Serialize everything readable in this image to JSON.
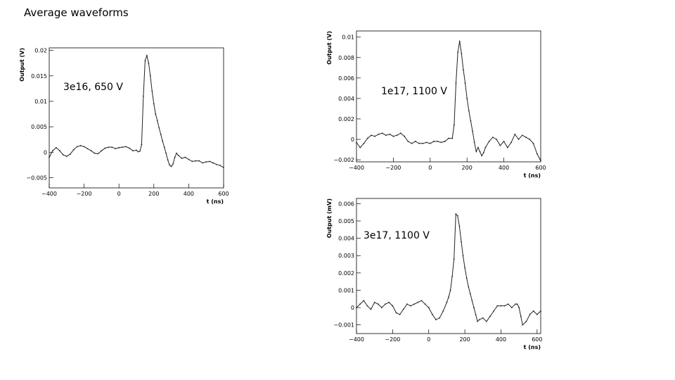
{
  "slide_title": "Average waveforms",
  "chart_data": [
    {
      "type": "line",
      "annotation": "3e16, 650 V",
      "xlabel": "t (ns)",
      "ylabel": "Output (V)",
      "xlim": [
        -400,
        600
      ],
      "ylim": [
        -0.007,
        0.0205
      ],
      "xticks": [
        -400,
        -200,
        0,
        200,
        400,
        600
      ],
      "xtick_labels": [
        "−400",
        "−200",
        "0",
        "200",
        "400",
        "600"
      ],
      "yticks": [
        -0.005,
        0,
        0.005,
        0.01,
        0.015,
        0.02
      ],
      "ytick_labels": [
        "−0.005",
        "0",
        "0.005",
        "0.01",
        "0.015",
        "0.02"
      ],
      "series": [
        {
          "x": [
            -400,
            -380,
            -360,
            -340,
            -320,
            -300,
            -280,
            -260,
            -240,
            -220,
            -200,
            -180,
            -160,
            -140,
            -120,
            -100,
            -80,
            -60,
            -40,
            -20,
            0,
            20,
            40,
            60,
            80,
            100,
            110,
            120,
            130,
            140,
            150,
            160,
            170,
            180,
            190,
            200,
            210,
            220,
            230,
            240,
            250,
            260,
            270,
            280,
            290,
            300,
            310,
            320,
            330,
            340,
            360,
            380,
            400,
            420,
            440,
            460,
            480,
            500,
            520,
            540,
            560,
            580,
            600
          ],
          "y": [
            -0.001,
            0.0003,
            0.0009,
            0.0003,
            -0.0005,
            -0.0008,
            -0.0004,
            0.0005,
            0.0011,
            0.0013,
            0.0011,
            0.0007,
            0.0003,
            -0.0002,
            -0.0003,
            0.0003,
            0.0008,
            0.001,
            0.001,
            0.0007,
            0.0009,
            0.001,
            0.0011,
            0.0008,
            0.0003,
            0.0004,
            0.0001,
            0.0002,
            0.0015,
            0.011,
            0.018,
            0.019,
            0.0175,
            0.015,
            0.012,
            0.0095,
            0.0075,
            0.0062,
            0.0048,
            0.0035,
            0.0022,
            0.001,
            -0.0002,
            -0.0015,
            -0.0025,
            -0.0028,
            -0.0023,
            -0.001,
            -0.0002,
            -0.0006,
            -0.0012,
            -0.001,
            -0.0014,
            -0.0018,
            -0.0017,
            -0.0017,
            -0.0021,
            -0.0019,
            -0.0018,
            -0.0021,
            -0.0024,
            -0.0026,
            -0.003
          ]
        }
      ]
    },
    {
      "type": "line",
      "annotation": "1e17, 1100 V",
      "xlabel": "t (ns)",
      "ylabel": "Output (V)",
      "xlim": [
        -400,
        600
      ],
      "ylim": [
        -0.0022,
        0.0106
      ],
      "xticks": [
        -400,
        -200,
        0,
        200,
        400,
        600
      ],
      "xtick_labels": [
        "−400",
        "−200",
        "0",
        "200",
        "400",
        "600"
      ],
      "yticks": [
        -0.002,
        0,
        0.002,
        0.004,
        0.006,
        0.008,
        0.01
      ],
      "ytick_labels": [
        "−0.002",
        "0",
        "0.002",
        "0.004",
        "0.006",
        "0.008",
        "0.01"
      ],
      "series": [
        {
          "x": [
            -400,
            -380,
            -360,
            -340,
            -320,
            -300,
            -280,
            -260,
            -240,
            -220,
            -200,
            -180,
            -160,
            -140,
            -120,
            -100,
            -80,
            -60,
            -40,
            -20,
            0,
            20,
            40,
            60,
            80,
            100,
            120,
            130,
            140,
            150,
            160,
            170,
            180,
            190,
            200,
            210,
            220,
            230,
            240,
            250,
            260,
            270,
            280,
            290,
            300,
            320,
            340,
            360,
            380,
            400,
            420,
            440,
            460,
            480,
            500,
            520,
            540,
            560,
            580,
            600
          ],
          "y": [
            -0.0003,
            -0.0008,
            -0.0004,
            0.0001,
            0.0004,
            0.0003,
            0.0005,
            0.0006,
            0.0004,
            0.0005,
            0.0003,
            0.0004,
            0.0006,
            0.0003,
            -0.0002,
            -0.0004,
            -0.0002,
            -0.0004,
            -0.0004,
            -0.0003,
            -0.0004,
            -0.0002,
            -0.0002,
            -0.0003,
            -0.0002,
            0.0001,
            0.0001,
            0.0014,
            0.0055,
            0.0085,
            0.0096,
            0.0084,
            0.0068,
            0.0055,
            0.004,
            0.0028,
            0.0018,
            0.0008,
            -0.0003,
            -0.0012,
            -0.0008,
            -0.0012,
            -0.0016,
            -0.0013,
            -0.0008,
            -0.0002,
            0.0002,
            0.0,
            -0.0006,
            -0.0002,
            -0.0008,
            -0.0003,
            0.0005,
            0.0,
            0.0004,
            0.0002,
            0.0,
            -0.0004,
            -0.0014,
            -0.0021
          ]
        }
      ]
    },
    {
      "type": "line",
      "annotation": "3e17, 1100 V",
      "xlabel": "t (ns)",
      "ylabel": "Output (mV)",
      "xlim": [
        -400,
        620
      ],
      "ylim": [
        -0.0015,
        0.0063
      ],
      "xticks": [
        -400,
        -200,
        0,
        200,
        400,
        600
      ],
      "xtick_labels": [
        "−400",
        "−200",
        "0",
        "200",
        "400",
        "600"
      ],
      "yticks": [
        -0.001,
        0,
        0.001,
        0.002,
        0.003,
        0.004,
        0.005,
        0.006
      ],
      "ytick_labels": [
        "−0.001",
        "0",
        "0.001",
        "0.002",
        "0.003",
        "0.004",
        "0.005",
        "0.006"
      ],
      "series": [
        {
          "x": [
            -400,
            -380,
            -360,
            -340,
            -320,
            -300,
            -280,
            -260,
            -240,
            -220,
            -200,
            -180,
            -160,
            -140,
            -120,
            -100,
            -80,
            -60,
            -40,
            -20,
            0,
            20,
            40,
            60,
            80,
            100,
            110,
            120,
            130,
            140,
            150,
            160,
            170,
            180,
            190,
            200,
            210,
            220,
            230,
            240,
            250,
            260,
            270,
            280,
            300,
            320,
            340,
            360,
            380,
            400,
            420,
            440,
            460,
            480,
            490,
            500,
            510,
            520,
            540,
            560,
            580,
            600,
            620
          ],
          "y": [
            0.0,
            0.0002,
            0.0004,
            0.0001,
            -0.0001,
            0.0003,
            0.0002,
            0.0,
            0.0002,
            0.0003,
            0.0001,
            -0.0003,
            -0.0004,
            -0.0001,
            0.0002,
            0.0001,
            0.0002,
            0.0003,
            0.0004,
            0.0002,
            0.0,
            -0.0004,
            -0.0007,
            -0.0006,
            -0.0002,
            0.0003,
            0.0006,
            0.001,
            0.0018,
            0.0028,
            0.0054,
            0.0053,
            0.0047,
            0.0038,
            0.003,
            0.0023,
            0.0017,
            0.0012,
            0.0008,
            0.0004,
            0.0,
            -0.0004,
            -0.0008,
            -0.0007,
            -0.0006,
            -0.0008,
            -0.0005,
            -0.0002,
            0.0001,
            0.0001,
            0.0001,
            0.0002,
            0.0,
            0.0002,
            0.0002,
            0.0,
            -0.0005,
            -0.001,
            -0.0008,
            -0.0004,
            -0.0002,
            -0.0004,
            -0.0002
          ]
        }
      ]
    }
  ]
}
